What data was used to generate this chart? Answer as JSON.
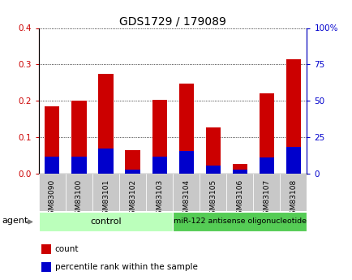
{
  "title": "GDS1729 / 179089",
  "samples": [
    "GSM83090",
    "GSM83100",
    "GSM83101",
    "GSM83102",
    "GSM83103",
    "GSM83104",
    "GSM83105",
    "GSM83106",
    "GSM83107",
    "GSM83108"
  ],
  "red_values": [
    0.185,
    0.2,
    0.273,
    0.065,
    0.202,
    0.248,
    0.127,
    0.027,
    0.22,
    0.315
  ],
  "blue_values": [
    0.047,
    0.047,
    0.068,
    0.01,
    0.047,
    0.063,
    0.022,
    0.01,
    0.044,
    0.074
  ],
  "ylim_left": [
    0,
    0.4
  ],
  "ylim_right": [
    0,
    100
  ],
  "yticks_left": [
    0,
    0.1,
    0.2,
    0.3,
    0.4
  ],
  "yticks_right": [
    0,
    25,
    50,
    75,
    100
  ],
  "red_color": "#cc0000",
  "blue_color": "#0000cc",
  "control_color": "#bbffbb",
  "treatment_color": "#55cc55",
  "bar_bg_color": "#c8c8c8",
  "control_label": "control",
  "treatment_label": "miR-122 antisense oligonucleotide",
  "control_samples": 5,
  "treatment_samples": 5,
  "legend_count": "count",
  "legend_pct": "percentile rank within the sample",
  "agent_label": "agent",
  "bar_width": 0.55,
  "fig_bg": "#f0f0f0"
}
